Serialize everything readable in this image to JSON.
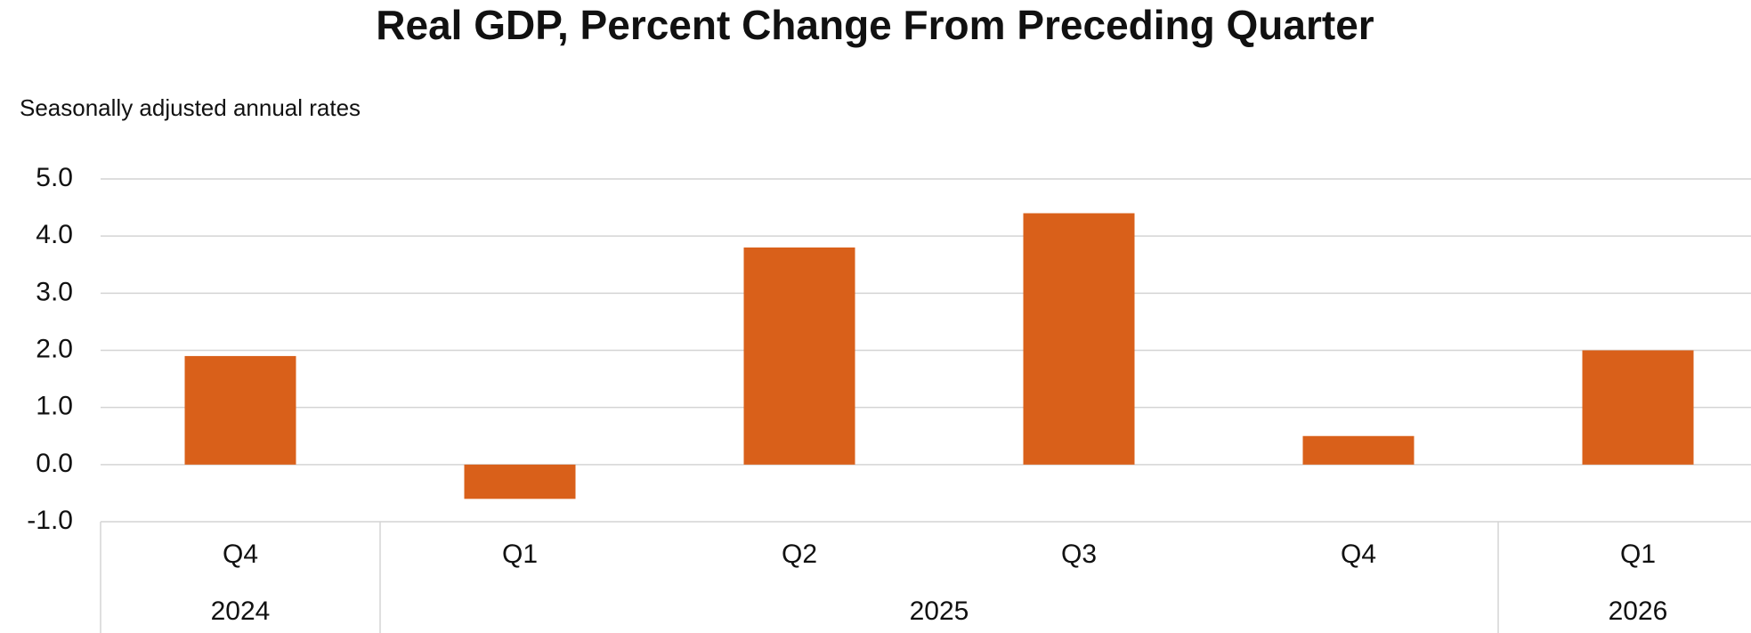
{
  "chart_data": {
    "type": "bar",
    "title": "Real GDP, Percent Change From Preceding Quarter",
    "subtitle": "Seasonally adjusted annual rates",
    "categories": [
      "Q4",
      "Q1",
      "Q2",
      "Q3",
      "Q4",
      "Q1"
    ],
    "groups": [
      {
        "name": "2024",
        "count": 1
      },
      {
        "name": "2025",
        "count": 4
      },
      {
        "name": "2026",
        "count": 1
      }
    ],
    "values": [
      1.9,
      -0.6,
      3.8,
      4.4,
      0.5,
      2.0
    ],
    "color": "#d9601a",
    "ylim": [
      -1,
      5
    ],
    "yticks": [
      {
        "value": -1,
        "label": "-1.0"
      },
      {
        "value": 0,
        "label": "0.0"
      },
      {
        "value": 1,
        "label": "1.0"
      },
      {
        "value": 2,
        "label": "2.0"
      },
      {
        "value": 3,
        "label": "3.0"
      },
      {
        "value": 4,
        "label": "4.0"
      },
      {
        "value": 5,
        "label": "5.0"
      }
    ],
    "grid": true
  }
}
